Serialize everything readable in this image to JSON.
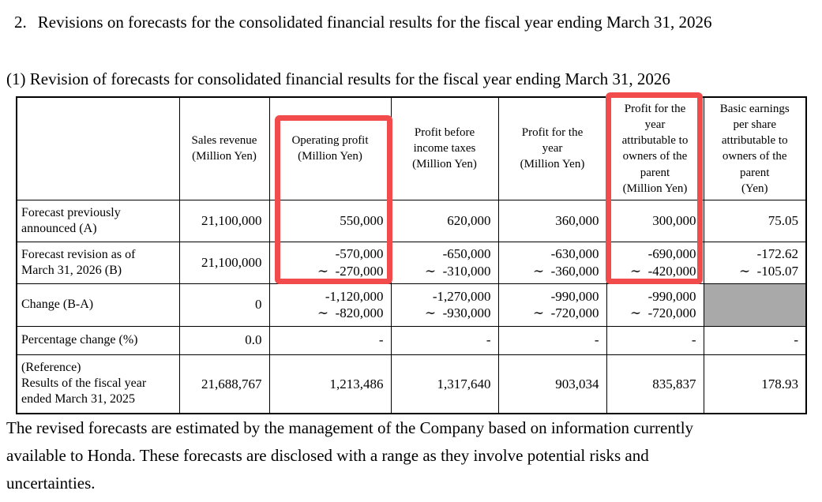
{
  "page": {
    "title_number": "2.",
    "title_text": "Revisions on forecasts for the consolidated financial results for the fiscal year ending March 31, 2026",
    "subtitle": "(1) Revision of forecasts for consolidated financial results for the fiscal year ending March 31, 2026",
    "footer_lines": [
      "The revised forecasts are estimated by the management of the Company based on information currently",
      "available to Honda. These forecasts are disclosed with a range as they involve potential risks and",
      "uncertainties."
    ]
  },
  "table": {
    "corner_label": "",
    "column_headers": [
      {
        "id": "sales-revenue",
        "lines": [
          "Sales revenue",
          "(Million Yen)"
        ],
        "highlighted": false
      },
      {
        "id": "operating-profit",
        "lines": [
          "Operating profit",
          "(Million Yen)"
        ],
        "highlighted": true
      },
      {
        "id": "profit-before-income-taxes",
        "lines": [
          "Profit before",
          "income taxes",
          "(Million Yen)"
        ],
        "highlighted": false
      },
      {
        "id": "profit-for-the-year",
        "lines": [
          "Profit for the",
          "year",
          "(Million Yen)"
        ],
        "highlighted": false
      },
      {
        "id": "profit-attributable-to-owners",
        "lines": [
          "Profit for the",
          "year",
          "attributable to",
          "owners of the",
          "parent",
          "(Million Yen)"
        ],
        "highlighted": true
      },
      {
        "id": "basic-earnings-per-share",
        "lines": [
          "Basic earnings",
          "per share",
          "attributable to",
          "owners of the",
          "parent",
          "(Yen)"
        ],
        "highlighted": false
      }
    ],
    "rows": [
      {
        "id": "forecast-previously-announced",
        "label_lines": [
          "Forecast previously",
          "announced (A)"
        ],
        "cells": [
          [
            "21,100,000"
          ],
          [
            "550,000"
          ],
          [
            "620,000"
          ],
          [
            "360,000"
          ],
          [
            "300,000"
          ],
          [
            "75.05"
          ]
        ]
      },
      {
        "id": "forecast-revision",
        "label_lines": [
          "Forecast revision as of",
          "March 31, 2026 (B)"
        ],
        "cells": [
          [
            "21,100,000"
          ],
          [
            "-570,000",
            "∼  -270,000"
          ],
          [
            "-650,000",
            "∼  -310,000"
          ],
          [
            "-630,000",
            "∼  -360,000"
          ],
          [
            "-690,000",
            "∼  -420,000"
          ],
          [
            "-172.62",
            "∼  -105.07"
          ]
        ]
      },
      {
        "id": "change-b-a",
        "label_lines": [
          "Change (B-A)"
        ],
        "cells": [
          [
            "0"
          ],
          [
            "-1,120,000",
            "∼  -820,000"
          ],
          [
            "-1,270,000",
            "∼  -930,000"
          ],
          [
            "-990,000",
            "∼  -720,000"
          ],
          [
            "-990,000",
            "∼  -720,000"
          ],
          []
        ],
        "gray_cell_index": 5
      },
      {
        "id": "percentage-change",
        "label_lines": [
          "Percentage change (%)"
        ],
        "cells": [
          [
            "0.0"
          ],
          [
            "-"
          ],
          [
            "-"
          ],
          [
            "-"
          ],
          [
            "-"
          ],
          [
            "-"
          ]
        ]
      },
      {
        "id": "reference-results-fy2025",
        "label_lines": [
          "(Reference)",
          "Results of the fiscal year",
          "ended March 31, 2025"
        ],
        "cells": [
          [
            "21,688,767"
          ],
          [
            "1,213,486"
          ],
          [
            "1,317,640"
          ],
          [
            "903,034"
          ],
          [
            "835,837"
          ],
          [
            "178.93"
          ]
        ]
      }
    ]
  },
  "annotations": {
    "highlight_border_color": "#f14c4b",
    "highlighted_columns": [
      "operating-profit",
      "profit-attributable-to-owners"
    ],
    "gray_cell_color": "#a9a9a9"
  }
}
